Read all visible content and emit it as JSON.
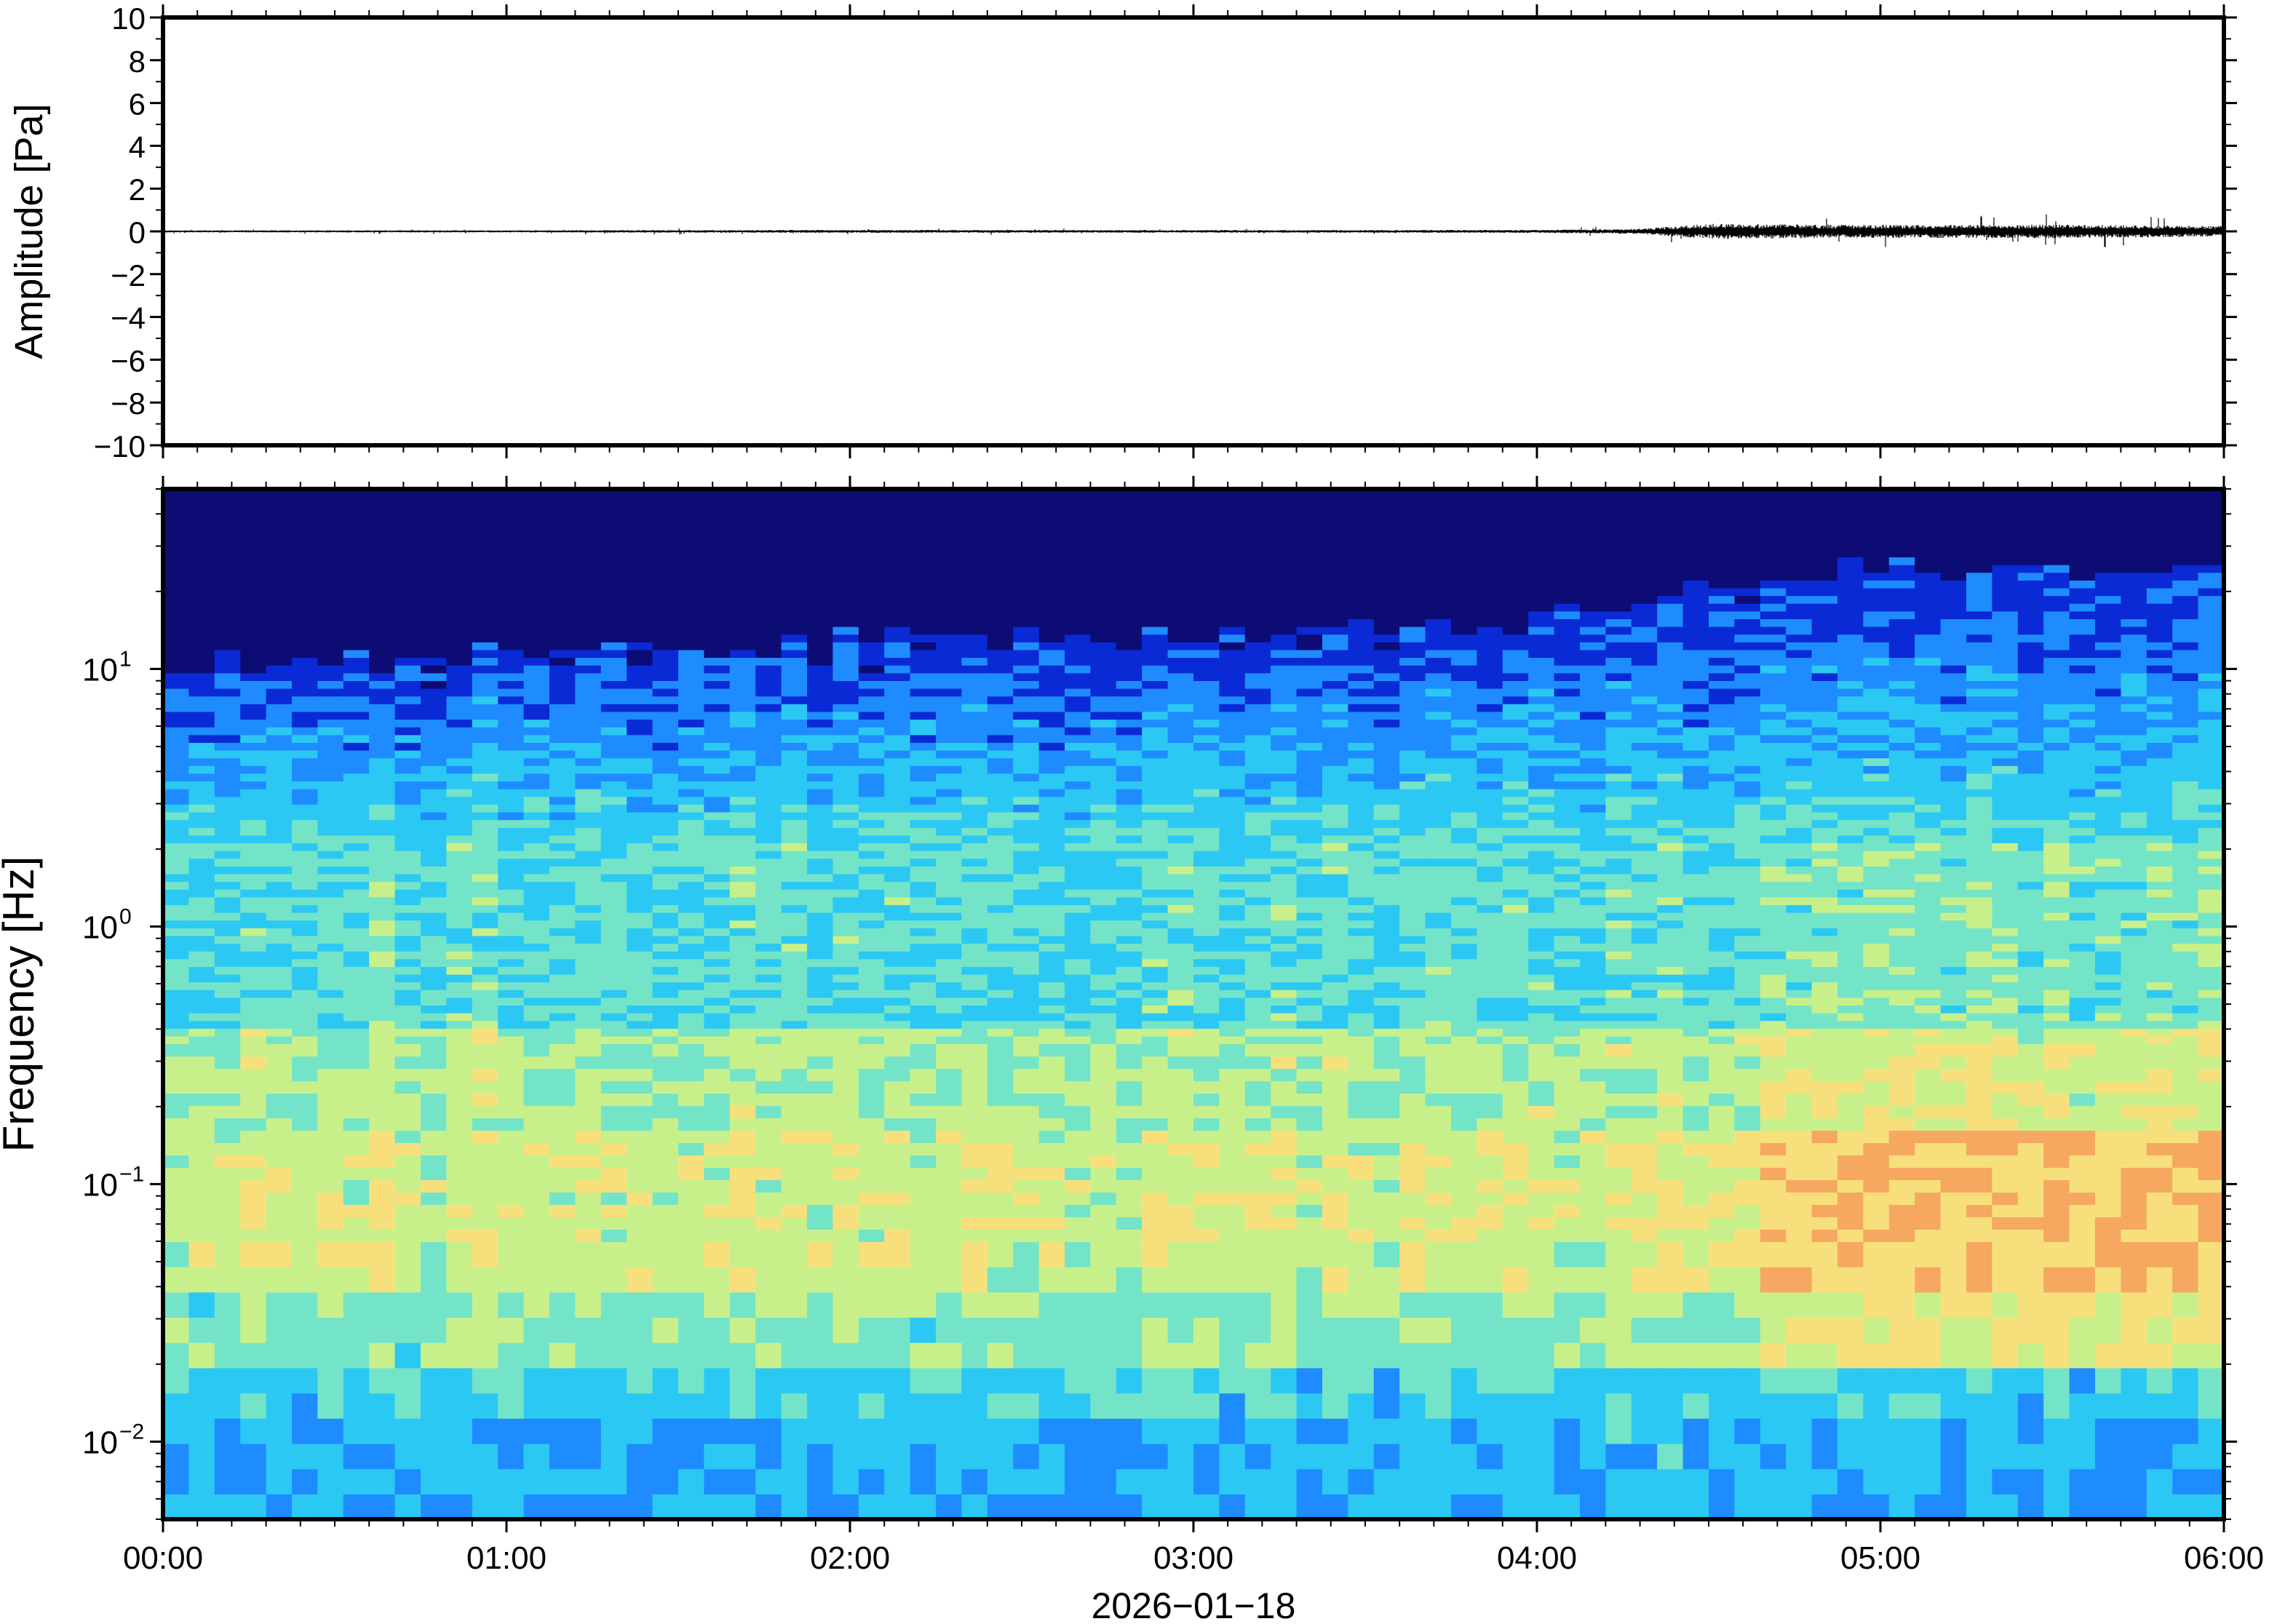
{
  "chart_data": [
    {
      "type": "line",
      "panel": "waveform",
      "ylabel": "Amplitude [Pa]",
      "xlim": [
        "00:00",
        "06:00"
      ],
      "ylim": [
        -10,
        10
      ],
      "ytick_labels": [
        "10",
        "8",
        "6",
        "4",
        "2",
        "0",
        "−2",
        "−4",
        "−6",
        "−8",
        "−10"
      ],
      "ytick_values": [
        10,
        8,
        6,
        4,
        2,
        0,
        -2,
        -4,
        -6,
        -8,
        -10
      ],
      "noise_envelope_pa": [
        {
          "t_hours": 0.0,
          "amp": 0.05
        },
        {
          "t_hours": 1.0,
          "amp": 0.05
        },
        {
          "t_hours": 2.0,
          "amp": 0.07
        },
        {
          "t_hours": 3.0,
          "amp": 0.06
        },
        {
          "t_hours": 4.0,
          "amp": 0.07
        },
        {
          "t_hours": 4.3,
          "amp": 0.12
        },
        {
          "t_hours": 4.5,
          "amp": 0.35
        },
        {
          "t_hours": 5.0,
          "amp": 0.3
        },
        {
          "t_hours": 5.5,
          "amp": 0.32
        },
        {
          "t_hours": 6.0,
          "amp": 0.25
        }
      ],
      "color": "#000000"
    },
    {
      "type": "heatmap",
      "panel": "spectrogram",
      "ylabel": "Frequency [Hz]",
      "xlabel": "2026−01−18",
      "xtick_labels": [
        "00:00",
        "01:00",
        "02:00",
        "03:00",
        "04:00",
        "05:00",
        "06:00"
      ],
      "xtick_hours": [
        0,
        1,
        2,
        3,
        4,
        5,
        6
      ],
      "yscale": "log",
      "ylim": [
        0.005,
        50
      ],
      "ytick_values": [
        10,
        1,
        0.1,
        0.01
      ],
      "ytick_labels": [
        {
          "base": "10",
          "exp": "1"
        },
        {
          "base": "10",
          "exp": "0"
        },
        {
          "base": "10",
          "exp": "−1"
        },
        {
          "base": "10",
          "exp": "−2"
        }
      ],
      "colormap": [
        "#0c0c74",
        "#0a2ad6",
        "#1e8cff",
        "#2cc8f4",
        "#74e4c8",
        "#c8f08a",
        "#f7e07c",
        "#f6a860"
      ],
      "top_cutoff_hz": [
        {
          "t_hours": 0.0,
          "hz": 10
        },
        {
          "t_hours": 1.0,
          "hz": 11
        },
        {
          "t_hours": 2.0,
          "hz": 13
        },
        {
          "t_hours": 3.0,
          "hz": 13
        },
        {
          "t_hours": 4.0,
          "hz": 15
        },
        {
          "t_hours": 4.5,
          "hz": 20
        },
        {
          "t_hours": 5.0,
          "hz": 24
        },
        {
          "t_hours": 6.0,
          "hz": 24
        }
      ]
    }
  ]
}
